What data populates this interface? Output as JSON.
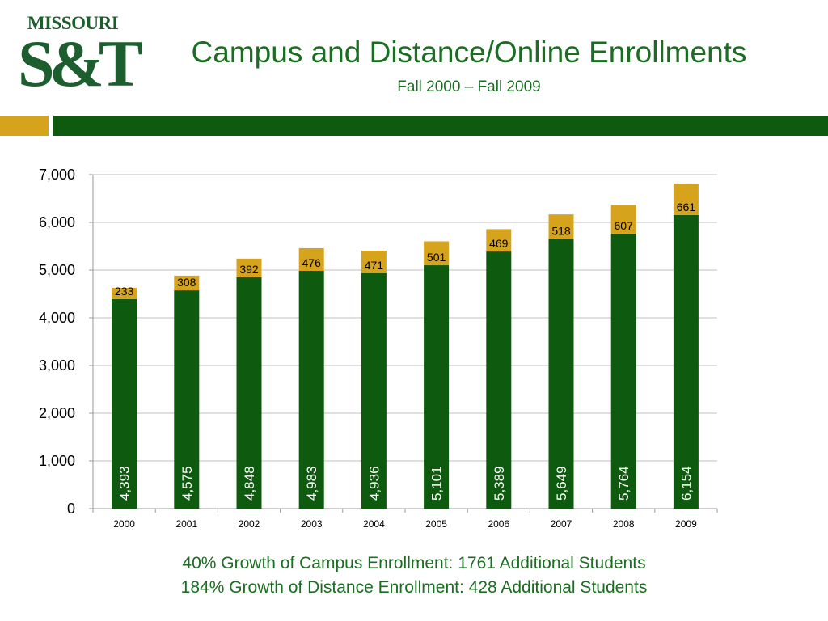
{
  "logo": {
    "top_text": "MISSOURI",
    "main_text": "S&T"
  },
  "header": {
    "title": "Campus and Distance/Online Enrollments",
    "subtitle": "Fall 2000 – Fall 2009"
  },
  "colors": {
    "campus": "#0e5a0e",
    "distance": "#d6a31d",
    "text_green": "#1b6d22"
  },
  "chart_data": {
    "type": "bar",
    "stacked": true,
    "categories": [
      "2000",
      "2001",
      "2002",
      "2003",
      "2004",
      "2005",
      "2006",
      "2007",
      "2008",
      "2009"
    ],
    "series": [
      {
        "values": [
          4393,
          4575,
          4848,
          4983,
          4936,
          5101,
          5389,
          5649,
          5764,
          6154
        ],
        "labels": [
          "4,393",
          "4,575",
          "4,848",
          "4,983",
          "4,936",
          "5,101",
          "5,389",
          "5,649",
          "5,764",
          "6,154"
        ]
      },
      {
        "values": [
          233,
          308,
          392,
          476,
          471,
          501,
          469,
          518,
          607,
          661
        ],
        "labels": [
          "233",
          "308",
          "392",
          "476",
          "471",
          "501",
          "469",
          "518",
          "607",
          "661"
        ]
      }
    ],
    "ylim": [
      0,
      7000
    ],
    "yticks": [
      0,
      1000,
      2000,
      3000,
      4000,
      5000,
      6000,
      7000
    ],
    "ytick_labels": [
      "0",
      "1,000",
      "2,000",
      "3,000",
      "4,000",
      "5,000",
      "6,000",
      "7,000"
    ],
    "grid": true,
    "legend": "none"
  },
  "footer": {
    "line1": "40% Growth of Campus Enrollment: 1761 Additional Students",
    "line2": "184% Growth of Distance Enrollment: 428 Additional Students"
  }
}
